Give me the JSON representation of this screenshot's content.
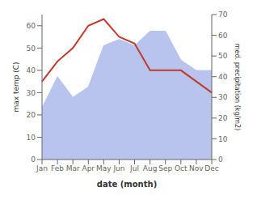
{
  "chart_data": {
    "type": "line",
    "categories": [
      "Jan",
      "Feb",
      "Mar",
      "Apr",
      "May",
      "Jun",
      "Jul",
      "Aug",
      "Sep",
      "Oct",
      "Nov",
      "Dec"
    ],
    "series": [
      {
        "type": "area",
        "axis": "y2",
        "color": "#b8c4ee",
        "values": [
          25,
          40,
          30,
          35,
          55,
          58,
          55,
          62,
          62,
          48,
          43,
          43
        ]
      },
      {
        "type": "line",
        "color": "#c0392b",
        "values": [
          35,
          44,
          50,
          60,
          63,
          55,
          52,
          40,
          40,
          40,
          35,
          30
        ]
      }
    ],
    "xlabel": "date (month)",
    "ylabel": "max temp (C)",
    "y2label": "med. precipitation (kg/m2)",
    "ylim": [
      0,
      65
    ],
    "yticks": [
      0,
      10,
      20,
      30,
      40,
      50,
      60
    ],
    "y2lim": [
      0,
      70
    ],
    "y2ticks": [
      0,
      10,
      20,
      30,
      40,
      50,
      60,
      70
    ],
    "grid": false
  }
}
